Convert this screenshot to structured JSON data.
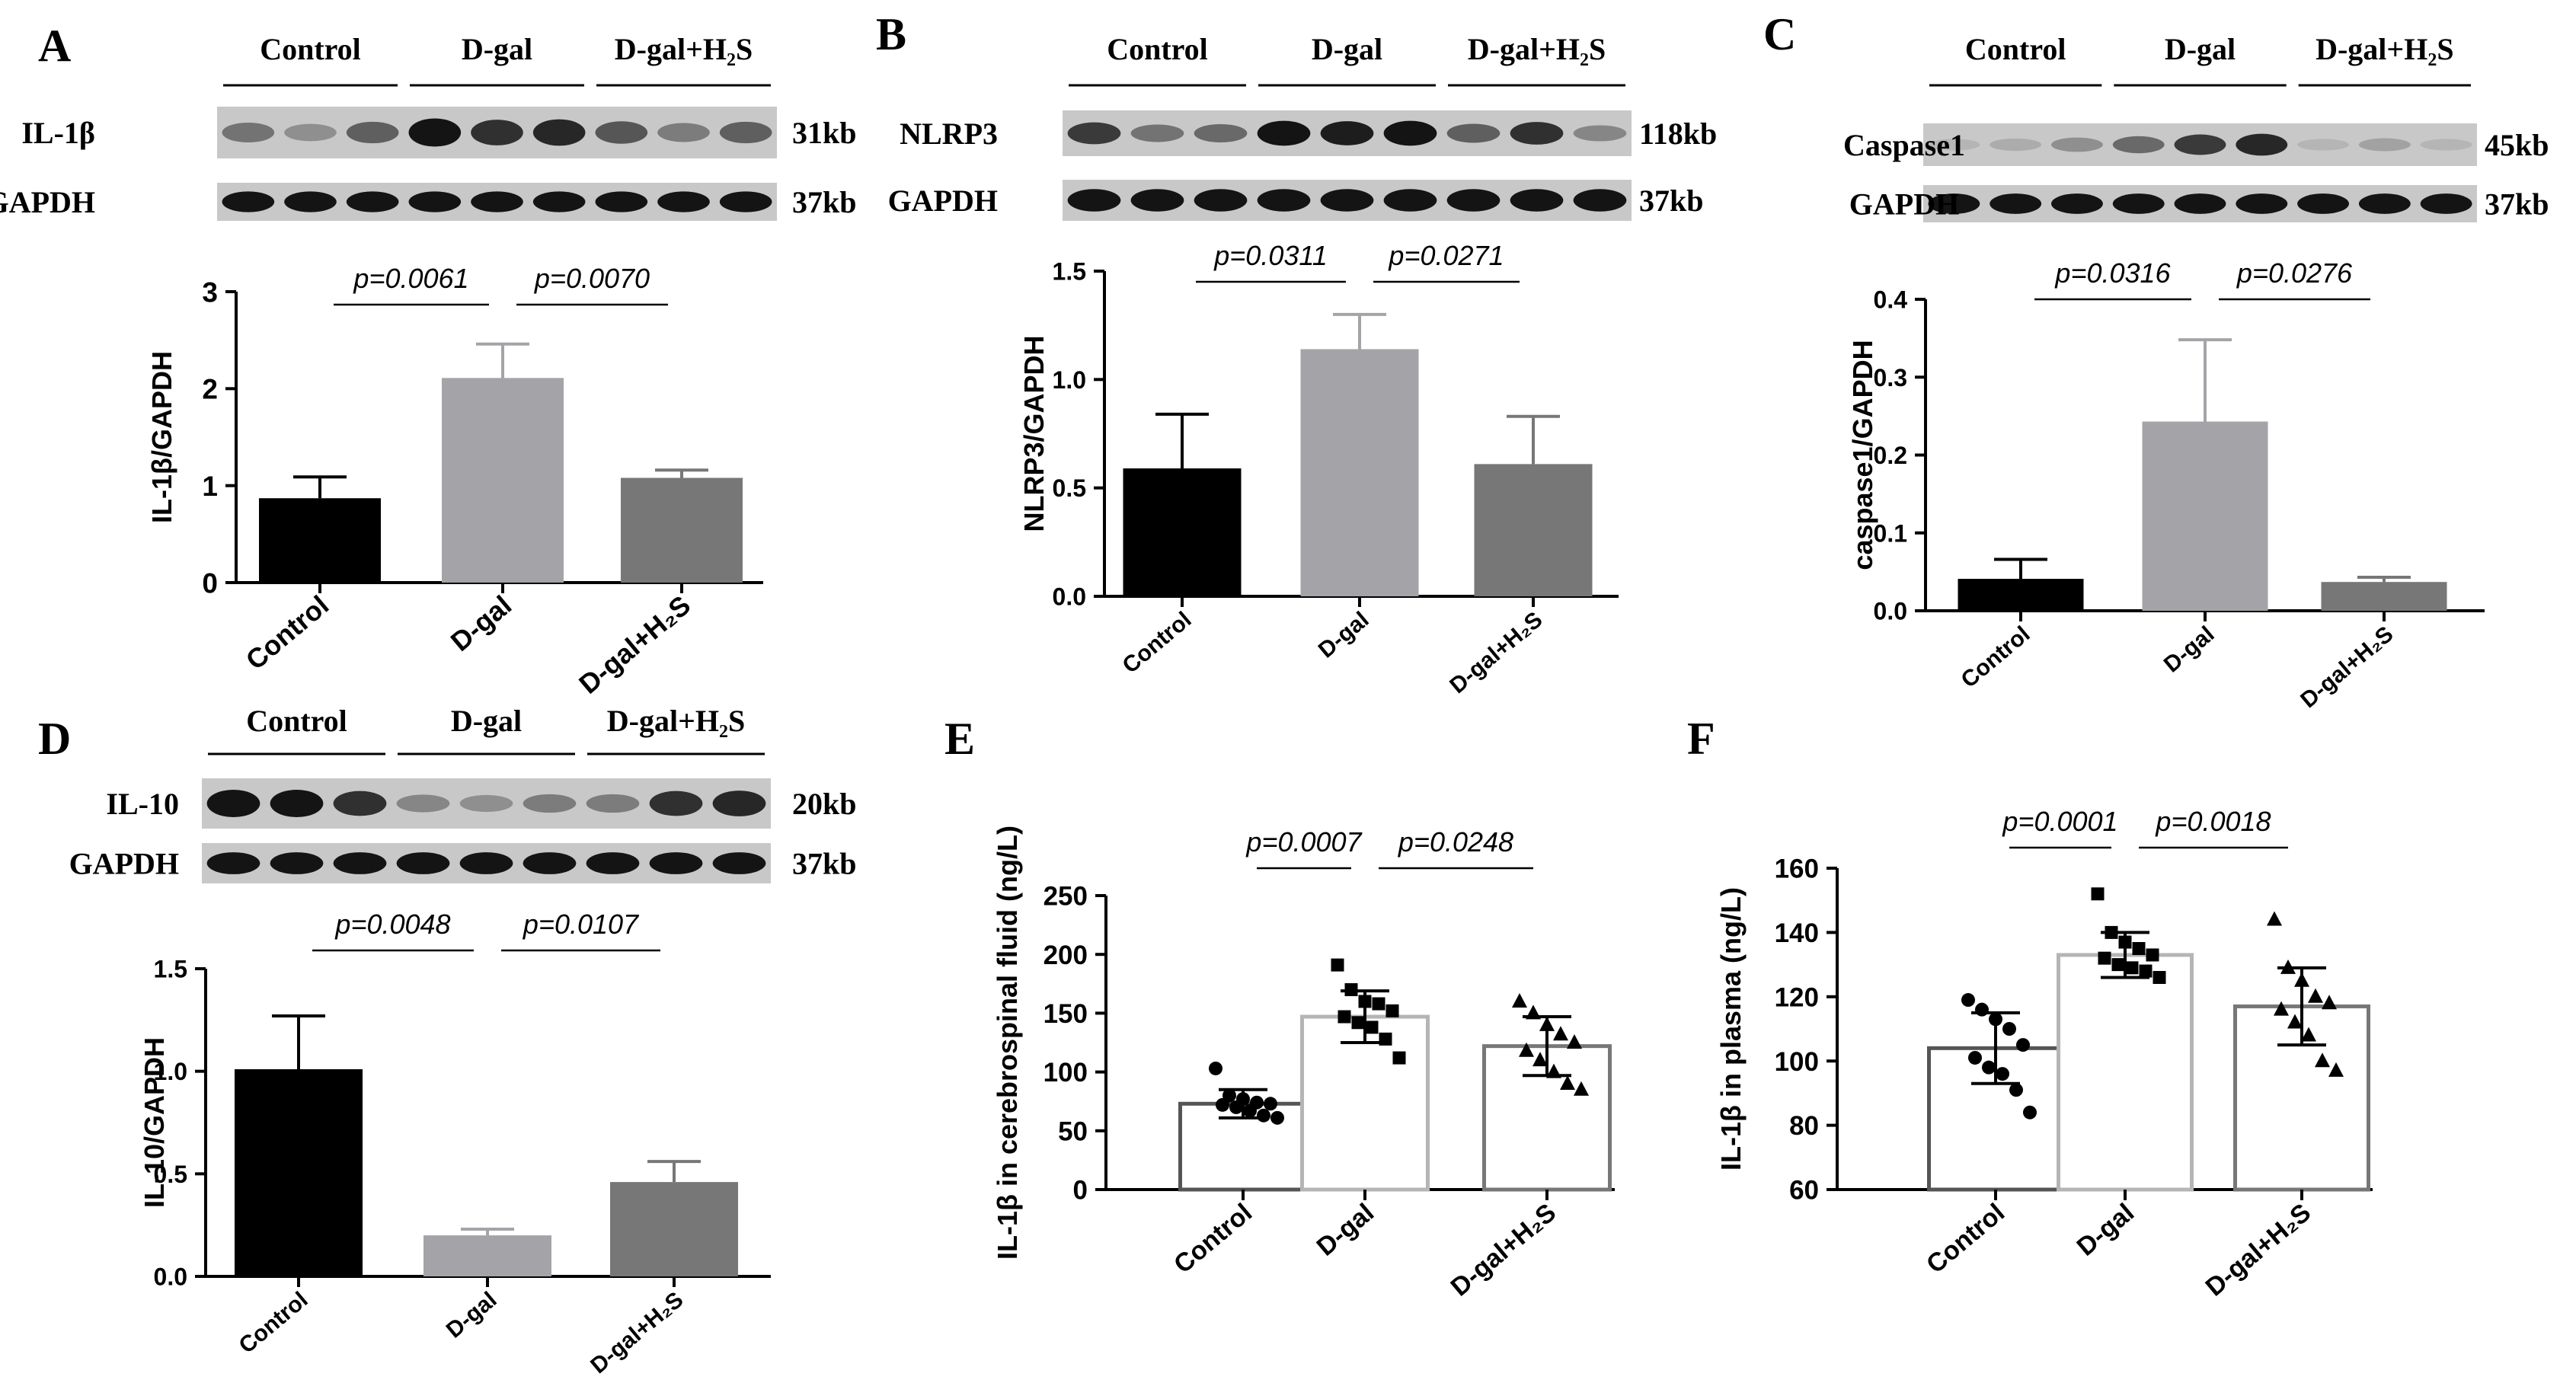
{
  "chart_data": [
    {
      "id": "A",
      "panel_label": "A",
      "type": "bar",
      "blot": {
        "groups": [
          "Control",
          "D-gal",
          "D-gal+H₂S"
        ],
        "rows": [
          {
            "label": "IL-1β",
            "size": "31kb",
            "intensity": [
              0.45,
              0.3,
              0.55,
              0.95,
              0.8,
              0.85,
              0.6,
              0.4,
              0.55
            ]
          },
          {
            "label": "GAPDH",
            "size": "37kb",
            "intensity": [
              0.95,
              0.95,
              0.95,
              0.95,
              0.95,
              0.95,
              0.95,
              0.95,
              0.95
            ]
          }
        ]
      },
      "categories": [
        "Control",
        "D-gal",
        "D-gal+H₂S"
      ],
      "values": [
        0.87,
        2.11,
        1.08
      ],
      "errors": [
        0.22,
        0.35,
        0.08
      ],
      "colors": [
        "#000000",
        "#a4a4a8",
        "#777777"
      ],
      "ylabel": "IL-1β/GAPDH",
      "ylim": [
        0,
        3
      ],
      "yticks": [
        0,
        1,
        2,
        3
      ],
      "ytick_labels": [
        "0",
        "1",
        "2",
        "3"
      ],
      "comparisons": [
        {
          "from": 0,
          "to": 1,
          "label": "p=0.0061"
        },
        {
          "from": 1,
          "to": 2,
          "label": "p=0.0070"
        }
      ]
    },
    {
      "id": "B",
      "panel_label": "B",
      "type": "bar",
      "blot": {
        "groups": [
          "Control",
          "D-gal",
          "D-gal+H₂S"
        ],
        "rows": [
          {
            "label": "NLRP3",
            "size": "118kb",
            "intensity": [
              0.75,
              0.45,
              0.5,
              0.95,
              0.9,
              0.95,
              0.55,
              0.8,
              0.35
            ]
          },
          {
            "label": "GAPDH",
            "size": "37kb",
            "intensity": [
              0.95,
              0.95,
              0.95,
              0.95,
              0.95,
              0.95,
              0.95,
              0.95,
              0.95
            ]
          }
        ]
      },
      "categories": [
        "Control",
        "D-gal",
        "D-gal+H₂S"
      ],
      "values": [
        0.59,
        1.14,
        0.61
      ],
      "errors": [
        0.25,
        0.16,
        0.22
      ],
      "colors": [
        "#000000",
        "#a4a4a8",
        "#777777"
      ],
      "ylabel": "NLRP3/GAPDH",
      "ylim": [
        0,
        1.5
      ],
      "yticks": [
        0,
        0.5,
        1.0,
        1.5
      ],
      "ytick_labels": [
        "0.0",
        "0.5",
        "1.0",
        "1.5"
      ],
      "comparisons": [
        {
          "from": 0,
          "to": 1,
          "label": "p=0.0311"
        },
        {
          "from": 1,
          "to": 2,
          "label": "p=0.0271"
        }
      ]
    },
    {
      "id": "C",
      "panel_label": "C",
      "type": "bar",
      "blot": {
        "groups": [
          "Control",
          "D-gal",
          "D-gal+H₂S"
        ],
        "rows": [
          {
            "label": "Caspase1",
            "size": "45kb",
            "intensity": [
              0.1,
              0.15,
              0.3,
              0.5,
              0.75,
              0.85,
              0.1,
              0.2,
              0.1
            ]
          },
          {
            "label": "GAPDH",
            "size": "37kb",
            "intensity": [
              0.95,
              0.95,
              0.95,
              0.95,
              0.95,
              0.95,
              0.95,
              0.95,
              0.95
            ]
          }
        ]
      },
      "categories": [
        "Control",
        "D-gal",
        "D-gal+H₂S"
      ],
      "values": [
        0.041,
        0.243,
        0.037
      ],
      "errors": [
        0.025,
        0.105,
        0.006
      ],
      "colors": [
        "#000000",
        "#a4a4a8",
        "#777777"
      ],
      "ylabel": "caspase1/GAPDH",
      "ylim": [
        0,
        0.4
      ],
      "yticks": [
        0,
        0.1,
        0.2,
        0.3,
        0.4
      ],
      "ytick_labels": [
        "0.0",
        "0.1",
        "0.2",
        "0.3",
        "0.4"
      ],
      "comparisons": [
        {
          "from": 0,
          "to": 1,
          "label": "p=0.0316"
        },
        {
          "from": 1,
          "to": 2,
          "label": "p=0.0276"
        }
      ]
    },
    {
      "id": "D",
      "panel_label": "D",
      "type": "bar",
      "blot": {
        "groups": [
          "Control",
          "D-gal",
          "D-gal+H₂S"
        ],
        "rows": [
          {
            "label": "IL-10",
            "size": "20kb",
            "intensity": [
              0.95,
              0.95,
              0.8,
              0.35,
              0.3,
              0.4,
              0.4,
              0.8,
              0.85
            ]
          },
          {
            "label": "GAPDH",
            "size": "37kb",
            "intensity": [
              0.95,
              0.95,
              0.95,
              0.95,
              0.95,
              0.95,
              0.95,
              0.95,
              0.95
            ]
          }
        ]
      },
      "categories": [
        "Control",
        "D-gal",
        "D-gal+H₂S"
      ],
      "values": [
        1.01,
        0.2,
        0.46
      ],
      "errors": [
        0.26,
        0.03,
        0.1
      ],
      "colors": [
        "#000000",
        "#a4a4a8",
        "#777777"
      ],
      "ylabel": "IL-10/GAPDH",
      "ylim": [
        0,
        1.5
      ],
      "yticks": [
        0,
        0.5,
        1.0,
        1.5
      ],
      "ytick_labels": [
        "0.0",
        "0.5",
        "1.0",
        "1.5"
      ],
      "comparisons": [
        {
          "from": 0,
          "to": 1,
          "label": "p=0.0048"
        },
        {
          "from": 1,
          "to": 2,
          "label": "p=0.0107"
        }
      ]
    },
    {
      "id": "E",
      "panel_label": "E",
      "type": "scatter",
      "categories": [
        "Control",
        "D-gal",
        "D-gal+H₂S"
      ],
      "values": [
        73,
        147,
        122
      ],
      "errors": [
        12,
        22,
        25
      ],
      "edge_colors": [
        "#555555",
        "#b5b5b5",
        "#777777"
      ],
      "markers": [
        "circle",
        "square",
        "triangle"
      ],
      "points": [
        [
          103,
          80,
          77,
          74,
          73,
          72,
          70,
          67,
          63,
          61
        ],
        [
          191,
          170,
          160,
          158,
          152,
          147,
          142,
          138,
          128,
          112
        ],
        [
          160,
          150,
          140,
          132,
          125,
          118,
          110,
          100,
          90,
          85
        ]
      ],
      "ylabel": "IL-1β in cerebrospinal fluid (ng/L)",
      "ylim": [
        0,
        250
      ],
      "yticks": [
        0,
        50,
        100,
        150,
        200,
        250
      ],
      "ytick_labels": [
        "0",
        "50",
        "100",
        "150",
        "200",
        "250"
      ],
      "comparisons": [
        {
          "from": 0,
          "to": 1,
          "label": "p=0.0007"
        },
        {
          "from": 1,
          "to": 2,
          "label": "p=0.0248"
        }
      ]
    },
    {
      "id": "F",
      "panel_label": "F",
      "type": "scatter",
      "categories": [
        "Control",
        "D-gal",
        "D-gal+H₂S"
      ],
      "values": [
        104,
        133,
        117
      ],
      "errors": [
        11,
        7,
        12
      ],
      "edge_colors": [
        "#555555",
        "#b5b5b5",
        "#777777"
      ],
      "markers": [
        "circle",
        "square",
        "triangle"
      ],
      "points": [
        [
          119,
          116,
          113,
          110,
          105,
          101,
          98,
          96,
          91,
          84
        ],
        [
          152,
          140,
          137,
          135,
          133,
          132,
          130,
          129,
          128,
          126
        ],
        [
          144,
          129,
          125,
          120,
          118,
          116,
          112,
          108,
          100,
          97
        ]
      ],
      "ylabel": "IL-1β in plasma (ng/L)",
      "ylim": [
        60,
        160
      ],
      "yticks": [
        60,
        80,
        100,
        120,
        140,
        160
      ],
      "ytick_labels": [
        "60",
        "80",
        "100",
        "120",
        "140",
        "160"
      ],
      "comparisons": [
        {
          "from": 0,
          "to": 1,
          "label": "p=0.0001"
        },
        {
          "from": 1,
          "to": 2,
          "label": "p=0.0018"
        }
      ]
    }
  ]
}
